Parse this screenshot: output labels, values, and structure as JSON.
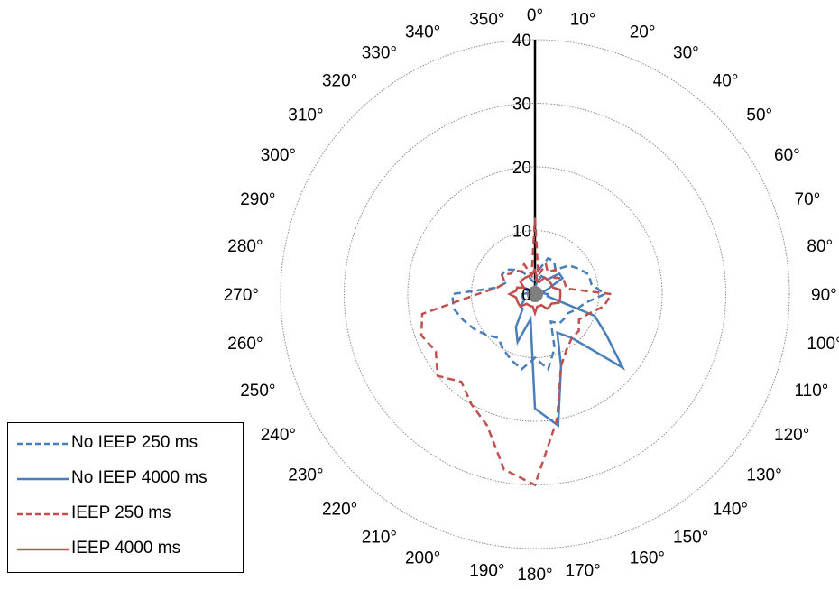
{
  "chart_data": {
    "type": "polar-line",
    "title": "",
    "theta_unit": "degrees",
    "theta_ticks": [
      "0°",
      "10°",
      "20°",
      "30°",
      "40°",
      "50°",
      "60°",
      "70°",
      "80°",
      "90°",
      "100°",
      "110°",
      "120°",
      "130°",
      "140°",
      "150°",
      "160°",
      "170°",
      "180°",
      "190°",
      "200°",
      "210°",
      "220°",
      "230°",
      "240°",
      "250°",
      "260°",
      "270°",
      "280°",
      "290°",
      "300°",
      "310°",
      "320°",
      "330°",
      "340°",
      "350°"
    ],
    "r_ticks": [
      "0",
      "10",
      "20",
      "30",
      "40"
    ],
    "rlim": [
      0,
      40
    ],
    "grid": true,
    "legend_position": "bottom-left",
    "reference_line": {
      "theta": 0,
      "r": 40,
      "color": "#000000"
    },
    "theta": [
      0,
      10,
      20,
      30,
      40,
      50,
      60,
      70,
      80,
      90,
      100,
      110,
      120,
      130,
      140,
      150,
      160,
      170,
      180,
      190,
      200,
      210,
      220,
      230,
      240,
      250,
      260,
      270,
      280,
      290,
      300,
      310,
      320,
      330,
      340,
      350
    ],
    "series": [
      {
        "name": "No IEEP 250 ms",
        "style": "dashed",
        "color": "#4a7ebb",
        "values": [
          2,
          4,
          6,
          6,
          5,
          7,
          8,
          9,
          9,
          11,
          8,
          7,
          6,
          6,
          6,
          5,
          9,
          12,
          10,
          12,
          11,
          10,
          9,
          10,
          11,
          12,
          13,
          13,
          6,
          5,
          6,
          6,
          5,
          4,
          3,
          2
        ]
      },
      {
        "name": "No IEEP 4000 ms",
        "style": "solid",
        "color": "#4a7ebb",
        "values": [
          1,
          2,
          3,
          3,
          3,
          5,
          5,
          2,
          1,
          2,
          2,
          10,
          13,
          18,
          9,
          7,
          12,
          21,
          18,
          4,
          8,
          6,
          3,
          3,
          2,
          2,
          2,
          2,
          1,
          1,
          2,
          1,
          1,
          1,
          1,
          1
        ]
      },
      {
        "name": "IEEP 250 ms",
        "style": "dashed",
        "color": "#c0504d",
        "values": [
          12,
          3,
          5,
          4,
          5,
          4,
          5,
          5,
          5,
          12,
          11,
          9,
          8,
          9,
          9,
          10,
          12,
          20,
          30,
          28,
          22,
          20,
          18,
          20,
          18,
          19,
          18,
          9,
          6,
          5,
          6,
          5,
          5,
          4,
          5,
          3
        ]
      },
      {
        "name": "IEEP 4000 ms",
        "style": "solid",
        "color": "#c0504d",
        "values": [
          4,
          2,
          2,
          3,
          3,
          3,
          3,
          3,
          4,
          4,
          4,
          4,
          3,
          3,
          3,
          2,
          2,
          2,
          3,
          2,
          2,
          2,
          2,
          3,
          3,
          3,
          3,
          4,
          3,
          3,
          2,
          3,
          3,
          3,
          3,
          3
        ]
      }
    ]
  },
  "legend": {
    "items": [
      {
        "label": "No IEEP 250 ms",
        "color": "#4a7ebb",
        "dash": "6,4"
      },
      {
        "label": "No IEEP 4000 ms",
        "color": "#4a7ebb",
        "dash": ""
      },
      {
        "label": "IEEP 250 ms",
        "color": "#c0504d",
        "dash": "6,4"
      },
      {
        "label": "IEEP 4000 ms",
        "color": "#c0504d",
        "dash": ""
      }
    ]
  }
}
